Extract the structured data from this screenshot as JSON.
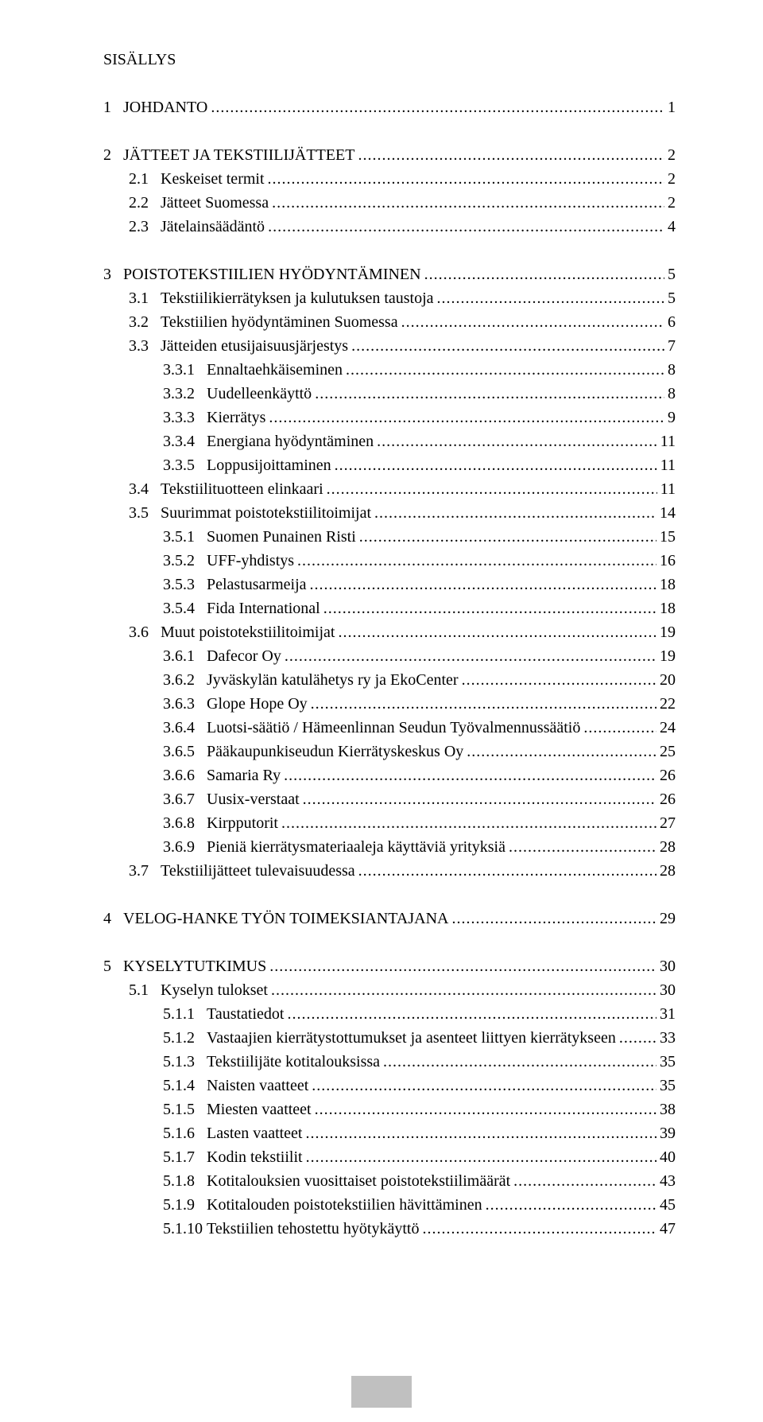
{
  "title": "SISÄLLYS",
  "entries": [
    {
      "level": 0,
      "label": "1   JOHDANTO",
      "page": "1",
      "gap": true
    },
    {
      "level": 0,
      "label": "2   JÄTTEET JA TEKSTIILIJÄTTEET",
      "page": "2",
      "gap": true
    },
    {
      "level": 1,
      "label": "2.1   Keskeiset termit",
      "page": "2"
    },
    {
      "level": 1,
      "label": "2.2   Jätteet Suomessa",
      "page": "2"
    },
    {
      "level": 1,
      "label": "2.3   Jätelainsäädäntö",
      "page": "4"
    },
    {
      "level": 0,
      "label": "3   POISTOTEKSTIILIEN HYÖDYNTÄMINEN",
      "page": "5",
      "gap": true
    },
    {
      "level": 1,
      "label": "3.1   Tekstiilikierrätyksen ja kulutuksen taustoja",
      "page": "5"
    },
    {
      "level": 1,
      "label": "3.2   Tekstiilien hyödyntäminen Suomessa",
      "page": "6"
    },
    {
      "level": 1,
      "label": "3.3   Jätteiden etusijaisuusjärjestys",
      "page": "7"
    },
    {
      "level": 2,
      "label": "3.3.1   Ennaltaehkäiseminen",
      "page": "8"
    },
    {
      "level": 2,
      "label": "3.3.2   Uudelleenkäyttö",
      "page": "8"
    },
    {
      "level": 2,
      "label": "3.3.3   Kierrätys",
      "page": "9"
    },
    {
      "level": 2,
      "label": "3.3.4   Energiana hyödyntäminen",
      "page": "11"
    },
    {
      "level": 2,
      "label": "3.3.5   Loppusijoittaminen",
      "page": "11"
    },
    {
      "level": 1,
      "label": "3.4   Tekstiilituotteen elinkaari",
      "page": "11"
    },
    {
      "level": 1,
      "label": "3.5   Suurimmat poistotekstiilitoimijat",
      "page": "14"
    },
    {
      "level": 2,
      "label": "3.5.1   Suomen Punainen Risti",
      "page": "15"
    },
    {
      "level": 2,
      "label": "3.5.2   UFF-yhdistys",
      "page": "16"
    },
    {
      "level": 2,
      "label": "3.5.3   Pelastusarmeija",
      "page": "18"
    },
    {
      "level": 2,
      "label": "3.5.4   Fida International",
      "page": "18"
    },
    {
      "level": 1,
      "label": "3.6   Muut poistotekstiilitoimijat",
      "page": "19"
    },
    {
      "level": 2,
      "label": "3.6.1   Dafecor Oy",
      "page": "19"
    },
    {
      "level": 2,
      "label": "3.6.2   Jyväskylän katulähetys ry ja EkoCenter",
      "page": "20"
    },
    {
      "level": 2,
      "label": "3.6.3   Glope Hope Oy",
      "page": "22"
    },
    {
      "level": 2,
      "label": "3.6.4   Luotsi-säätiö / Hämeenlinnan Seudun Työvalmennussäätiö",
      "page": "24"
    },
    {
      "level": 2,
      "label": "3.6.5   Pääkaupunkiseudun Kierrätyskeskus Oy",
      "page": "25"
    },
    {
      "level": 2,
      "label": "3.6.6   Samaria Ry",
      "page": "26"
    },
    {
      "level": 2,
      "label": "3.6.7   Uusix-verstaat",
      "page": "26"
    },
    {
      "level": 2,
      "label": "3.6.8   Kirpputorit",
      "page": "27"
    },
    {
      "level": 2,
      "label": "3.6.9   Pieniä kierrätysmateriaaleja käyttäviä yrityksiä",
      "page": "28"
    },
    {
      "level": 1,
      "label": "3.7   Tekstiilijätteet tulevaisuudessa",
      "page": "28"
    },
    {
      "level": 0,
      "label": "4   VELOG-HANKE TYÖN TOIMEKSIANTAJANA",
      "page": "29",
      "gap": true
    },
    {
      "level": 0,
      "label": "5   KYSELYTUTKIMUS",
      "page": "30",
      "gap": true
    },
    {
      "level": 1,
      "label": "5.1   Kyselyn tulokset",
      "page": "30"
    },
    {
      "level": 2,
      "label": "5.1.1   Taustatiedot",
      "page": "31"
    },
    {
      "level": 2,
      "label": "5.1.2   Vastaajien kierrätystottumukset ja asenteet liittyen kierrätykseen",
      "page": "33"
    },
    {
      "level": 2,
      "label": "5.1.3   Tekstiilijäte kotitalouksissa",
      "page": "35"
    },
    {
      "level": 2,
      "label": "5.1.4   Naisten vaatteet",
      "page": "35"
    },
    {
      "level": 2,
      "label": "5.1.5   Miesten vaatteet",
      "page": "38"
    },
    {
      "level": 2,
      "label": "5.1.6   Lasten vaatteet",
      "page": "39"
    },
    {
      "level": 2,
      "label": "5.1.7   Kodin tekstiilit",
      "page": "40"
    },
    {
      "level": 2,
      "label": "5.1.8   Kotitalouksien vuosittaiset poistotekstiilimäärät",
      "page": "43"
    },
    {
      "level": 2,
      "label": "5.1.9   Kotitalouden poistotekstiilien hävittäminen",
      "page": "45"
    },
    {
      "level": 2,
      "label": "5.1.10 Tekstiilien tehostettu hyötykäyttö",
      "page": "47"
    }
  ]
}
